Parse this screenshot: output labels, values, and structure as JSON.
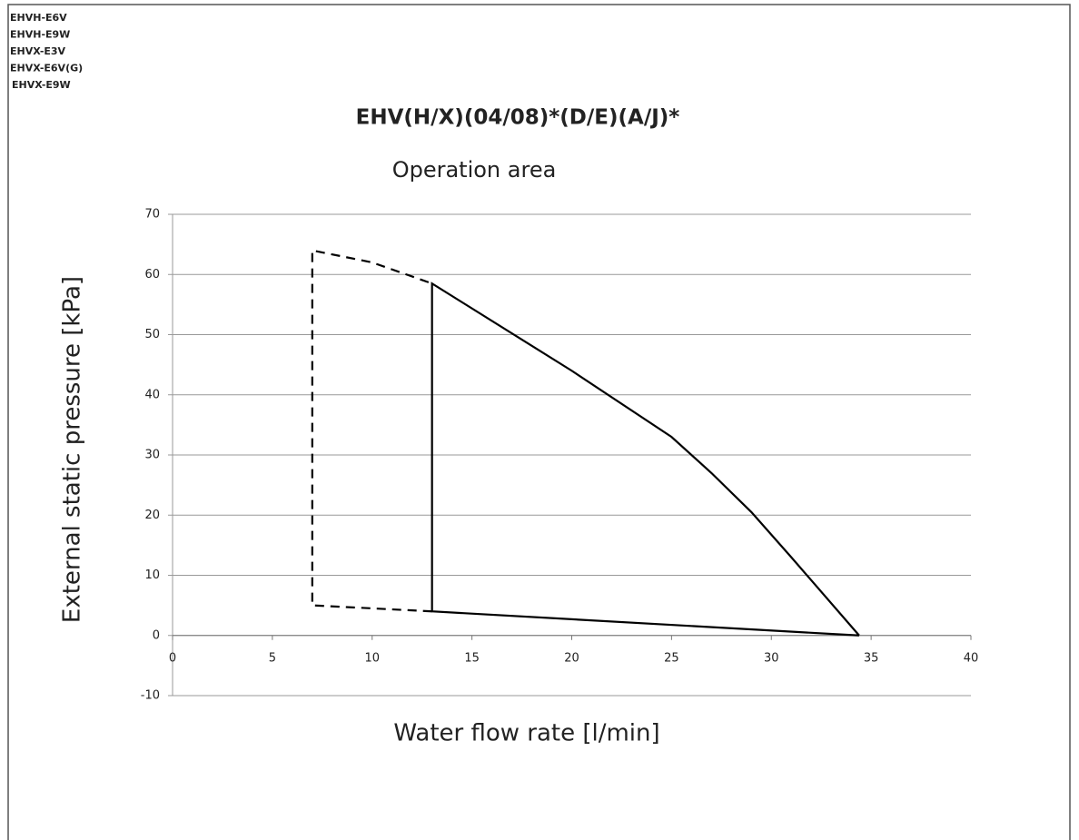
{
  "chart_data": {
    "type": "line",
    "annotations": [
      "EHVH-E6V",
      "EHVH-E9W",
      "EHVX-E3V",
      "EHVX-E6V(G)",
      "EHVX-E9W"
    ],
    "title": "EHV(H/X)(04/08)*(D/E)(A/J)*",
    "subtitle": "Operation area",
    "xlabel": "Water flow rate [l/min]",
    "ylabel": "External static pressure [kPa]",
    "xlim": [
      0,
      40
    ],
    "xticks": [
      0,
      5,
      10,
      15,
      20,
      25,
      30,
      35,
      40
    ],
    "ylim": [
      -10,
      70
    ],
    "yticks": [
      -10,
      0,
      10,
      20,
      30,
      40,
      50,
      60,
      70
    ],
    "grid": true,
    "series": [
      {
        "color": "#000000",
        "dashed": false,
        "x": [
          34.4,
          13,
          13,
          20,
          25,
          27,
          29,
          31,
          34.4
        ],
        "values": [
          0,
          4,
          58.5,
          44,
          33,
          27,
          20.5,
          13,
          0
        ]
      },
      {
        "color": "#000000",
        "dashed": true,
        "x": [
          13,
          7,
          7,
          10,
          13
        ],
        "values": [
          4,
          5,
          64,
          62,
          58.5
        ]
      }
    ]
  }
}
